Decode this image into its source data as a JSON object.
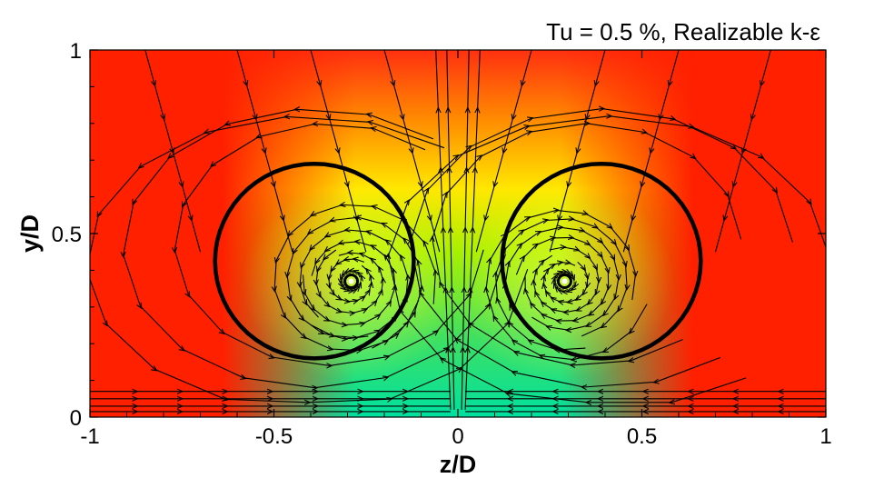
{
  "chart_data": {
    "type": "heatmap",
    "title": "Tu = 0.5 %, Realizable k-ε",
    "xlabel": "z/D",
    "ylabel": "y/D",
    "xlim": [
      -1,
      1
    ],
    "ylim": [
      0,
      1
    ],
    "x_ticks": [
      {
        "value": -1,
        "label": "-1"
      },
      {
        "value": -0.5,
        "label": "-0.5"
      },
      {
        "value": 0,
        "label": "0"
      },
      {
        "value": 0.5,
        "label": "0.5"
      },
      {
        "value": 1,
        "label": "1"
      }
    ],
    "y_ticks": [
      {
        "value": 0,
        "label": "0"
      },
      {
        "value": 0.5,
        "label": "0.5"
      },
      {
        "value": 1,
        "label": "1"
      }
    ],
    "colormap": [
      "#00e0a0",
      "#30e020",
      "#a0f000",
      "#ffff00",
      "#ffa000",
      "#ff2000"
    ],
    "vortex_cores": [
      {
        "z": -0.29,
        "y": 0.37
      },
      {
        "z": 0.29,
        "y": 0.37
      }
    ],
    "separatrix_loops": [
      {
        "z_min": -0.66,
        "z_max": -0.12,
        "y_min": 0.16,
        "y_max": 0.69
      },
      {
        "z_min": 0.12,
        "z_max": 0.66,
        "y_min": 0.16,
        "y_max": 0.69
      }
    ],
    "grid": false,
    "legend": "none"
  }
}
